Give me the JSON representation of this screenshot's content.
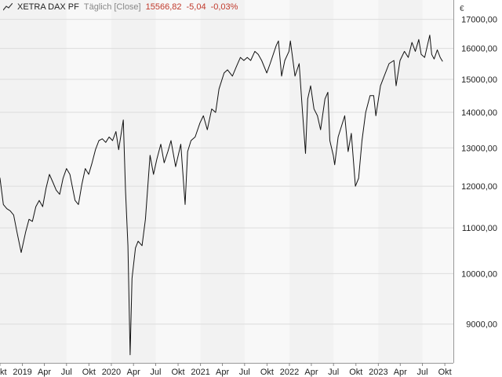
{
  "header": {
    "instrument": "XETRA DAX PF",
    "mode": "Täglich [Close]",
    "last": "15566,82",
    "change_abs": "-5,04",
    "change_pct": "-0,03%"
  },
  "colors": {
    "background": "#ffffff",
    "plot_band_a": "#f2f2f2",
    "plot_band_b": "#f8f8f8",
    "grid": "#dcdcdc",
    "line": "#111111",
    "negative": "#c0392b"
  },
  "chart_data": {
    "type": "line",
    "title": "",
    "xlabel": "",
    "ylabel": "",
    "currency_label": "€",
    "grid": true,
    "scale": "log",
    "xlim": [
      "2018-10-01",
      "2023-11-05"
    ],
    "ylim": [
      8300,
      17700
    ],
    "yticks": [
      9000,
      10000,
      11000,
      12000,
      13000,
      14000,
      15000,
      16000,
      17000
    ],
    "ytick_labels": [
      "9000,00",
      "10000,00",
      "11000,00",
      "12000,00",
      "13000,00",
      "14000,00",
      "15000,00",
      "16000,00",
      "17000,00"
    ],
    "xticks": [
      {
        "date": "2018-10-01",
        "label": "Okt"
      },
      {
        "date": "2019-01-01",
        "label": "2019"
      },
      {
        "date": "2019-04-01",
        "label": "Apr"
      },
      {
        "date": "2019-07-01",
        "label": "Jul"
      },
      {
        "date": "2019-10-01",
        "label": "Okt"
      },
      {
        "date": "2020-01-01",
        "label": "2020"
      },
      {
        "date": "2020-04-01",
        "label": "Apr"
      },
      {
        "date": "2020-07-01",
        "label": "Jul"
      },
      {
        "date": "2020-10-01",
        "label": "Okt"
      },
      {
        "date": "2021-01-01",
        "label": "2021"
      },
      {
        "date": "2021-04-01",
        "label": "Apr"
      },
      {
        "date": "2021-07-01",
        "label": "Jul"
      },
      {
        "date": "2021-10-01",
        "label": "Okt"
      },
      {
        "date": "2022-01-01",
        "label": "2022"
      },
      {
        "date": "2022-04-01",
        "label": "Apr"
      },
      {
        "date": "2022-07-01",
        "label": "Jul"
      },
      {
        "date": "2022-10-01",
        "label": "Okt"
      },
      {
        "date": "2023-01-01",
        "label": "2023"
      },
      {
        "date": "2023-04-01",
        "label": "Apr"
      },
      {
        "date": "2023-07-01",
        "label": "Jul"
      },
      {
        "date": "2023-10-01",
        "label": "Okt"
      }
    ],
    "series": [
      {
        "points": [
          [
            "2018-09-03",
            12460
          ],
          [
            "2018-09-17",
            12420
          ],
          [
            "2018-10-01",
            12200
          ],
          [
            "2018-10-15",
            11550
          ],
          [
            "2018-10-29",
            11450
          ],
          [
            "2018-11-12",
            11400
          ],
          [
            "2018-11-26",
            11300
          ],
          [
            "2018-12-10",
            10900
          ],
          [
            "2018-12-27",
            10450
          ],
          [
            "2019-01-14",
            10900
          ],
          [
            "2019-01-28",
            11200
          ],
          [
            "2019-02-11",
            11150
          ],
          [
            "2019-02-25",
            11500
          ],
          [
            "2019-03-11",
            11650
          ],
          [
            "2019-03-25",
            11500
          ],
          [
            "2019-04-08",
            11950
          ],
          [
            "2019-04-22",
            12300
          ],
          [
            "2019-05-06",
            12100
          ],
          [
            "2019-05-20",
            11900
          ],
          [
            "2019-06-03",
            11800
          ],
          [
            "2019-06-17",
            12200
          ],
          [
            "2019-07-01",
            12450
          ],
          [
            "2019-07-15",
            12300
          ],
          [
            "2019-08-05",
            11650
          ],
          [
            "2019-08-19",
            11550
          ],
          [
            "2019-09-02",
            12050
          ],
          [
            "2019-09-16",
            12450
          ],
          [
            "2019-09-30",
            12300
          ],
          [
            "2019-10-14",
            12600
          ],
          [
            "2019-10-28",
            12950
          ],
          [
            "2019-11-11",
            13200
          ],
          [
            "2019-11-25",
            13250
          ],
          [
            "2019-12-09",
            13150
          ],
          [
            "2019-12-23",
            13300
          ],
          [
            "2020-01-06",
            13200
          ],
          [
            "2020-01-20",
            13450
          ],
          [
            "2020-01-31",
            12950
          ],
          [
            "2020-02-19",
            13780
          ],
          [
            "2020-02-28",
            11900
          ],
          [
            "2020-03-09",
            10600
          ],
          [
            "2020-03-18",
            8440
          ],
          [
            "2020-03-26",
            9900
          ],
          [
            "2020-04-09",
            10550
          ],
          [
            "2020-04-20",
            10700
          ],
          [
            "2020-05-06",
            10600
          ],
          [
            "2020-05-20",
            11200
          ],
          [
            "2020-06-08",
            12800
          ],
          [
            "2020-06-22",
            12300
          ],
          [
            "2020-07-06",
            12700
          ],
          [
            "2020-07-22",
            13100
          ],
          [
            "2020-08-05",
            12600
          ],
          [
            "2020-08-20",
            12900
          ],
          [
            "2020-09-02",
            13200
          ],
          [
            "2020-09-21",
            12500
          ],
          [
            "2020-10-12",
            13100
          ],
          [
            "2020-10-30",
            11550
          ],
          [
            "2020-11-09",
            12900
          ],
          [
            "2020-11-23",
            13200
          ],
          [
            "2020-12-10",
            13300
          ],
          [
            "2020-12-30",
            13700
          ],
          [
            "2021-01-13",
            13900
          ],
          [
            "2021-01-29",
            13500
          ],
          [
            "2021-02-16",
            14100
          ],
          [
            "2021-03-04",
            14000
          ],
          [
            "2021-03-18",
            14700
          ],
          [
            "2021-04-08",
            15200
          ],
          [
            "2021-04-22",
            15300
          ],
          [
            "2021-05-12",
            15100
          ],
          [
            "2021-05-28",
            15400
          ],
          [
            "2021-06-14",
            15700
          ],
          [
            "2021-06-28",
            15600
          ],
          [
            "2021-07-12",
            15700
          ],
          [
            "2021-07-26",
            15600
          ],
          [
            "2021-08-12",
            15900
          ],
          [
            "2021-08-26",
            15800
          ],
          [
            "2021-09-09",
            15600
          ],
          [
            "2021-09-30",
            15200
          ],
          [
            "2021-10-14",
            15500
          ],
          [
            "2021-11-08",
            16100
          ],
          [
            "2021-11-17",
            16250
          ],
          [
            "2021-11-30",
            15100
          ],
          [
            "2021-12-13",
            15600
          ],
          [
            "2021-12-30",
            15900
          ],
          [
            "2022-01-05",
            16250
          ],
          [
            "2022-01-24",
            15100
          ],
          [
            "2022-02-10",
            15500
          ],
          [
            "2022-02-24",
            14000
          ],
          [
            "2022-03-08",
            12850
          ],
          [
            "2022-03-17",
            14400
          ],
          [
            "2022-03-29",
            14800
          ],
          [
            "2022-04-12",
            14100
          ],
          [
            "2022-04-26",
            13900
          ],
          [
            "2022-05-09",
            13500
          ],
          [
            "2022-05-27",
            14400
          ],
          [
            "2022-06-08",
            14600
          ],
          [
            "2022-06-16",
            13200
          ],
          [
            "2022-06-30",
            12800
          ],
          [
            "2022-07-06",
            12550
          ],
          [
            "2022-07-20",
            13300
          ],
          [
            "2022-08-16",
            13900
          ],
          [
            "2022-08-30",
            12900
          ],
          [
            "2022-09-12",
            13400
          ],
          [
            "2022-09-29",
            12000
          ],
          [
            "2022-10-12",
            12200
          ],
          [
            "2022-10-26",
            13200
          ],
          [
            "2022-11-10",
            14000
          ],
          [
            "2022-11-28",
            14500
          ],
          [
            "2022-12-13",
            14500
          ],
          [
            "2022-12-22",
            13900
          ],
          [
            "2023-01-10",
            14800
          ],
          [
            "2023-01-25",
            15100
          ],
          [
            "2023-02-14",
            15500
          ],
          [
            "2023-03-06",
            15600
          ],
          [
            "2023-03-15",
            14800
          ],
          [
            "2023-03-31",
            15600
          ],
          [
            "2023-04-18",
            15900
          ],
          [
            "2023-05-04",
            15700
          ],
          [
            "2023-05-19",
            16200
          ],
          [
            "2023-06-02",
            15900
          ],
          [
            "2023-06-16",
            16300
          ],
          [
            "2023-06-26",
            15800
          ],
          [
            "2023-07-10",
            15700
          ],
          [
            "2023-07-31",
            16450
          ],
          [
            "2023-08-08",
            15800
          ],
          [
            "2023-08-18",
            15650
          ],
          [
            "2023-08-31",
            15950
          ],
          [
            "2023-09-12",
            15700
          ],
          [
            "2023-09-22",
            15566.82
          ]
        ]
      }
    ]
  }
}
